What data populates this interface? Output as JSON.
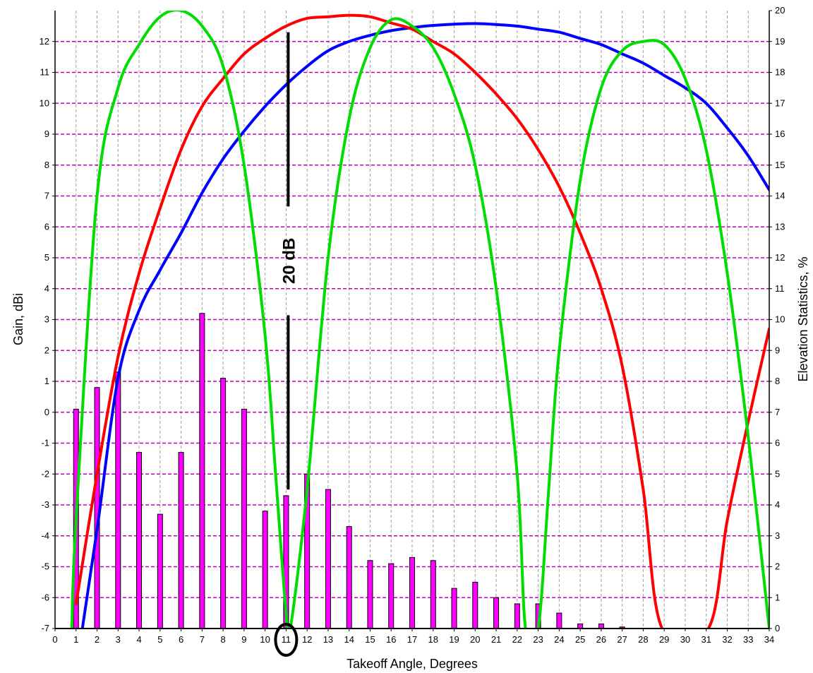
{
  "chart_data": {
    "type": "bar",
    "title": "",
    "xlabel": "Takeoff Angle, Degrees",
    "ylabel": "Gain, dBi",
    "y2label": "Elevation Statistics, %",
    "xlim": [
      0,
      34
    ],
    "ylim": [
      -7,
      13
    ],
    "y2lim": [
      0,
      20
    ],
    "x_ticks": [
      "0",
      "1",
      "2",
      "3",
      "4",
      "5",
      "6",
      "7",
      "8",
      "9",
      "10",
      "11",
      "12",
      "13",
      "14",
      "15",
      "16",
      "17",
      "18",
      "19",
      "20",
      "21",
      "22",
      "23",
      "24",
      "25",
      "26",
      "27",
      "28",
      "29",
      "30",
      "31",
      "32",
      "33",
      "34"
    ],
    "y_ticks": [
      "-7",
      "-6",
      "-5",
      "-4",
      "-3",
      "-2",
      "-1",
      "0",
      "1",
      "2",
      "3",
      "4",
      "5",
      "6",
      "7",
      "8",
      "9",
      "10",
      "11",
      "12"
    ],
    "y2_ticks": [
      "0",
      "1",
      "2",
      "3",
      "4",
      "5",
      "6",
      "7",
      "8",
      "9",
      "10",
      "11",
      "12",
      "13",
      "14",
      "15",
      "16",
      "17",
      "18",
      "19",
      "20"
    ],
    "grid": true,
    "bars": {
      "axis": "right",
      "color": "#ff00ff",
      "x": [
        1,
        2,
        3,
        4,
        5,
        6,
        7,
        8,
        9,
        10,
        11,
        12,
        13,
        14,
        15,
        16,
        17,
        18,
        19,
        20,
        21,
        22,
        23,
        24,
        25,
        26,
        27
      ],
      "values": [
        7.1,
        7.8,
        8.3,
        5.7,
        3.7,
        5.7,
        10.2,
        8.1,
        7.1,
        3.8,
        4.3,
        5.0,
        4.5,
        3.3,
        2.2,
        2.1,
        2.3,
        2.2,
        1.3,
        1.5,
        1.0,
        0.8,
        0.8,
        0.5,
        0.15,
        0.15,
        0.05
      ]
    },
    "series": [
      {
        "color": "#0000ff",
        "axis": "left",
        "x": [
          1.3,
          2,
          3,
          4,
          5,
          6,
          7,
          8,
          9,
          10,
          11,
          12,
          13,
          14,
          15,
          16,
          17,
          18,
          19,
          20,
          21,
          22,
          23,
          24,
          25,
          26,
          27,
          28,
          29,
          30,
          31,
          32,
          33,
          34
        ],
        "values": [
          -7,
          -3.8,
          1.1,
          3.3,
          4.6,
          5.8,
          7.1,
          8.2,
          9.1,
          9.9,
          10.6,
          11.2,
          11.7,
          12.0,
          12.2,
          12.35,
          12.45,
          12.52,
          12.56,
          12.58,
          12.55,
          12.5,
          12.4,
          12.3,
          12.1,
          11.9,
          11.6,
          11.3,
          10.9,
          10.5,
          10.0,
          9.2,
          8.3,
          7.2
        ]
      },
      {
        "color": "#ff0000",
        "axis": "left",
        "x": [
          1,
          2,
          3,
          4,
          5,
          6,
          7,
          8,
          9,
          10,
          11,
          12,
          13,
          14,
          15,
          16,
          17,
          18,
          19,
          20,
          21,
          22,
          23,
          24,
          25,
          26,
          27,
          28,
          28.9,
          31.1,
          32,
          33,
          34
        ],
        "values": [
          -6.2,
          -2.0,
          1.8,
          4.5,
          6.6,
          8.5,
          9.9,
          10.8,
          11.6,
          12.1,
          12.5,
          12.75,
          12.8,
          12.85,
          12.8,
          12.6,
          12.4,
          12.0,
          11.6,
          11.0,
          10.3,
          9.5,
          8.5,
          7.3,
          5.8,
          4.0,
          1.5,
          -2.5,
          -7,
          -7,
          -3.5,
          -0.3,
          2.7
        ]
      },
      {
        "color": "#00dd00",
        "axis": "left",
        "x": [
          0.8,
          1,
          2,
          3,
          4,
          5,
          6,
          7,
          8,
          9,
          10,
          10.5,
          11,
          11.2,
          12,
          13,
          14,
          15,
          16,
          17,
          18,
          19,
          20,
          21,
          22,
          22.4,
          23,
          23.5,
          24,
          25,
          26,
          27,
          28,
          29,
          30,
          31,
          32,
          33,
          34
        ],
        "values": [
          -7,
          -3.5,
          7.0,
          10.5,
          11.9,
          12.8,
          13.0,
          12.5,
          11.2,
          8.0,
          2.5,
          -2.0,
          -6.5,
          -7,
          -2.5,
          5.0,
          9.5,
          11.8,
          12.7,
          12.5,
          11.8,
          10.3,
          8.0,
          4.0,
          -2.0,
          -7,
          -7,
          -2.5,
          2.0,
          7.5,
          10.5,
          11.7,
          12.0,
          11.9,
          10.8,
          8.5,
          4.5,
          -0.8,
          -7
        ]
      }
    ],
    "annotations": [
      {
        "text": "20 dB",
        "x": 11.1,
        "y1": -2.5,
        "y2": 12.3,
        "orientation": "vertical"
      },
      {
        "type": "circle",
        "x": 11,
        "label": "11"
      }
    ]
  }
}
